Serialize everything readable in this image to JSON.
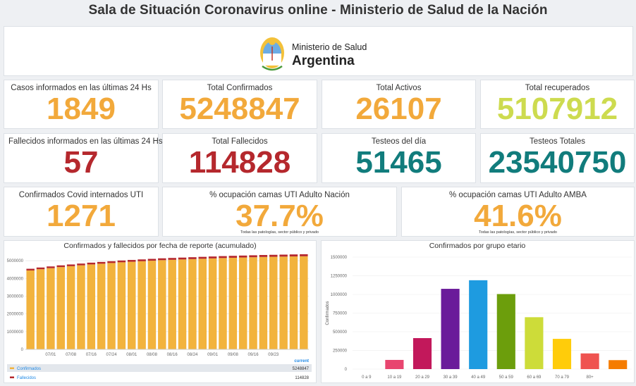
{
  "title": "Sala de Situación Coronavirus online - Ministerio de Salud de la Nación",
  "logo": {
    "line1": "Ministerio de Salud",
    "line2": "Argentina"
  },
  "cards": [
    {
      "label": "Casos informados en las últimas 24 Hs",
      "value": 1849,
      "color": "#f2a93b"
    },
    {
      "label": "Total Confirmados",
      "value": 5248847,
      "color": "#f2a93b"
    },
    {
      "label": "Total Activos",
      "value": 26107,
      "color": "#f2a93b"
    },
    {
      "label": "Total recuperados",
      "value": 5107912,
      "color": "#cddb4f"
    },
    {
      "label": "Fallecidos informados en las últimas 24 Hs",
      "value": 57,
      "color": "#b5282d"
    },
    {
      "label": "Total Fallecidos",
      "value": 114828,
      "color": "#b5282d"
    },
    {
      "label": "Testeos del día",
      "value": 51465,
      "color": "#117c7c"
    },
    {
      "label": "Testeos Totales",
      "value": 23540750,
      "color": "#117c7c"
    },
    {
      "label": "Confirmados Covid internados UTI",
      "value": 1271,
      "color": "#f2a93b"
    },
    {
      "label": "% ocupación camas UTI Adulto Nación",
      "value": 37.7,
      "value_label": "37.7%",
      "color": "#f2a93b",
      "note": "Todas las patologías, sector público y privado"
    },
    {
      "label": "% ocupación camas UTI Adulto AMBA",
      "value": 41.6,
      "value_label": "41.6%",
      "color": "#f2a93b",
      "note": "Todas las patologías, sector público y privado"
    }
  ],
  "chart_data": [
    {
      "type": "stacked-bar",
      "title": "Confirmados y fallecidos por fecha de reporte (acumulado)",
      "categories": [
        null,
        null,
        "07/01",
        null,
        "07/08",
        null,
        "07/16",
        null,
        "07/24",
        null,
        "08/01",
        null,
        "08/08",
        null,
        "08/16",
        null,
        "08/24",
        null,
        "09/01",
        null,
        "09/08",
        null,
        "09/16",
        null,
        "09/23",
        null,
        null,
        null
      ],
      "series": [
        {
          "name": "Confirmados",
          "color": "#f2b33d",
          "current": 5248847,
          "values": [
            4450000,
            4520000,
            4580000,
            4640000,
            4690000,
            4740000,
            4790000,
            4830000,
            4870000,
            4910000,
            4940000,
            4970000,
            5000000,
            5030000,
            5050000,
            5070000,
            5090000,
            5110000,
            5130000,
            5150000,
            5165000,
            5180000,
            5195000,
            5210000,
            5220000,
            5230000,
            5240000,
            5248847
          ]
        },
        {
          "name": "Fallecidos",
          "color": "#b5282d",
          "current": 114828,
          "values": [
            95000,
            95700,
            96400,
            97100,
            97800,
            98500,
            99200,
            99900,
            100600,
            101300,
            102000,
            102700,
            103400,
            104100,
            104800,
            105500,
            106200,
            106900,
            107600,
            108300,
            109000,
            109700,
            110400,
            111100,
            111800,
            112500,
            113700,
            114828
          ]
        }
      ],
      "legend_header": "current",
      "ylim": [
        0,
        5600000
      ],
      "yticks": [
        0,
        1000000,
        2000000,
        3000000,
        4000000,
        5000000
      ],
      "grid": true
    },
    {
      "type": "bar",
      "title": "Confirmados por grupo etario",
      "ylabel": "Confirmados",
      "categories": [
        "0 a 9",
        "10 a 19",
        "20 a 29",
        "30 a 39",
        "40 a 49",
        "50 a 59",
        "60 a 69",
        "70 a 79",
        "80+",
        null
      ],
      "values": [
        null,
        123000,
        415000,
        1075000,
        1190000,
        1005000,
        695000,
        405000,
        210000,
        120000
      ],
      "colors": [
        null,
        "#e8456f",
        "#c2185b",
        "#6a1b9a",
        "#1e9be0",
        "#6c9e0c",
        "#cddc39",
        "#ffcc0a",
        "#ef5350",
        "#f57c00"
      ],
      "ylim": [
        0,
        1500000
      ],
      "yticks": [
        0,
        250000,
        500000,
        750000,
        1000000,
        1250000,
        1500000
      ],
      "grid": true
    }
  ]
}
